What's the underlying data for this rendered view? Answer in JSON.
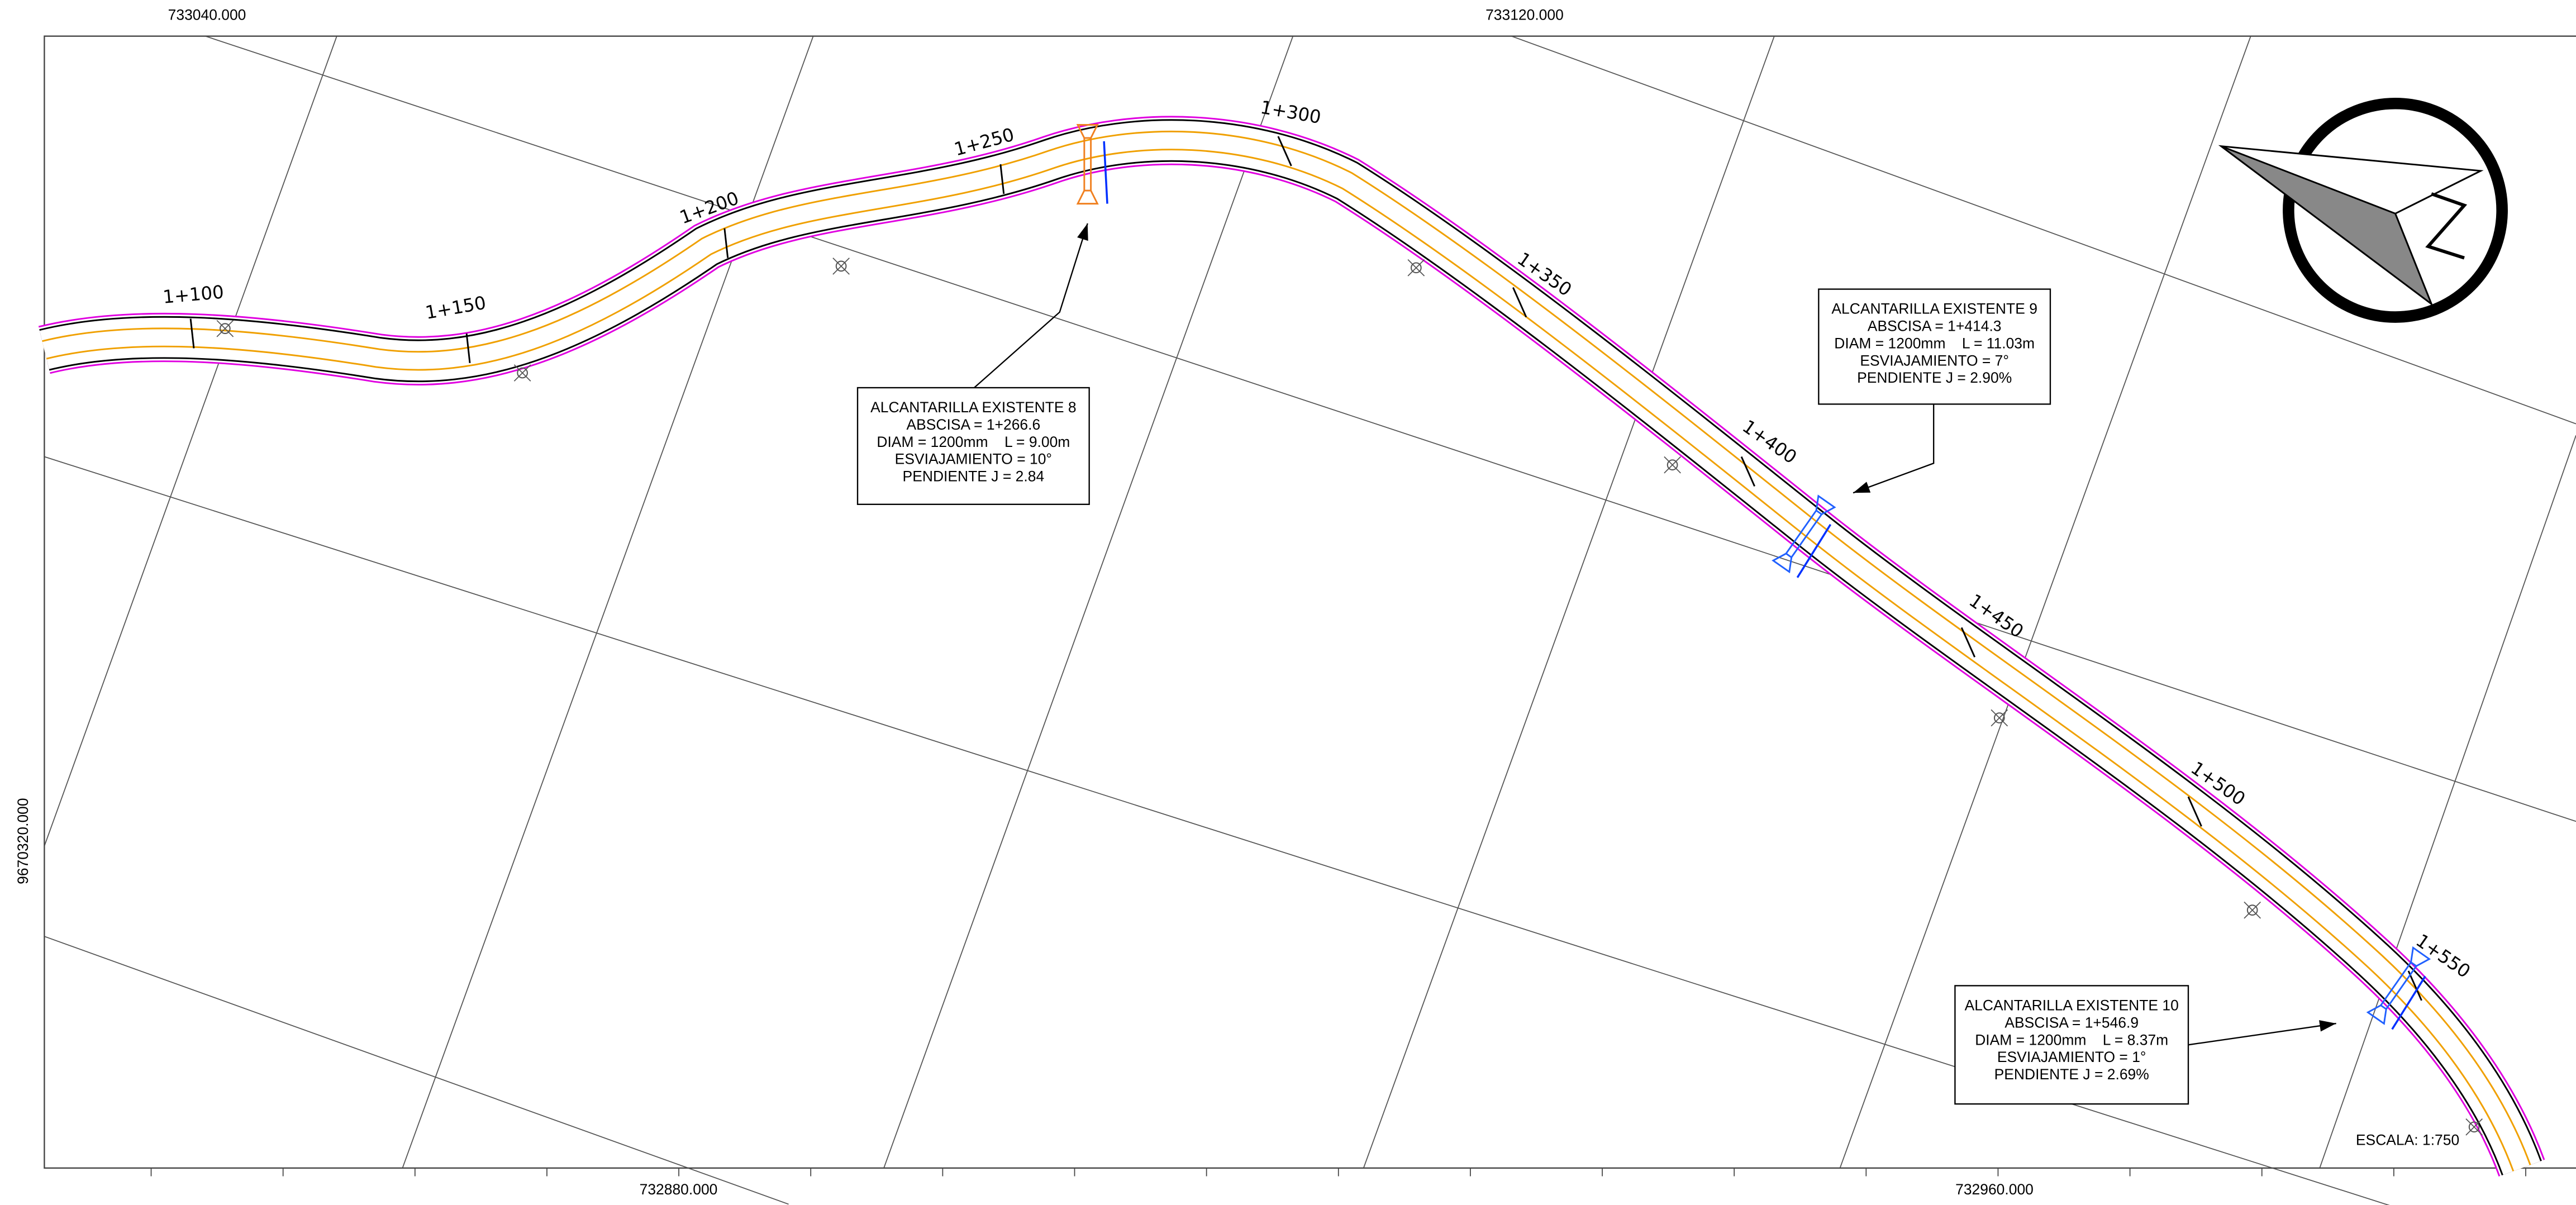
{
  "coordinates": {
    "top": [
      "733040.000",
      "733120.000"
    ],
    "bottom": [
      "732880.000",
      "732960.000"
    ],
    "left": [
      "9670320.000"
    ]
  },
  "stations": [
    "1+100",
    "1+150",
    "1+200",
    "1+250",
    "1+300",
    "1+350",
    "1+400",
    "1+450",
    "1+500",
    "1+550"
  ],
  "culverts": [
    {
      "lines": [
        "ALCANTARILLA EXISTENTE 8",
        "ABSCISA = 1+266.6",
        "DIAM = 1200mm    L = 9.00m",
        "ESVIAJAMIENTO = 10°",
        "PENDIENTE J = 2.84"
      ]
    },
    {
      "lines": [
        "ALCANTARILLA EXISTENTE 9",
        "ABSCISA = 1+414.3",
        "DIAM = 1200mm    L = 11.03m",
        "ESVIAJAMIENTO = 7°",
        "PENDIENTE J = 2.90%"
      ]
    },
    {
      "lines": [
        "ALCANTARILLA EXISTENTE 10",
        "ABSCISA = 1+546.9",
        "DIAM = 1200mm    L = 8.37m",
        "ESVIAJAMIENTO = 1°",
        "PENDIENTE J = 2.69%"
      ]
    }
  ],
  "scale": "ESCALA: 1:750"
}
